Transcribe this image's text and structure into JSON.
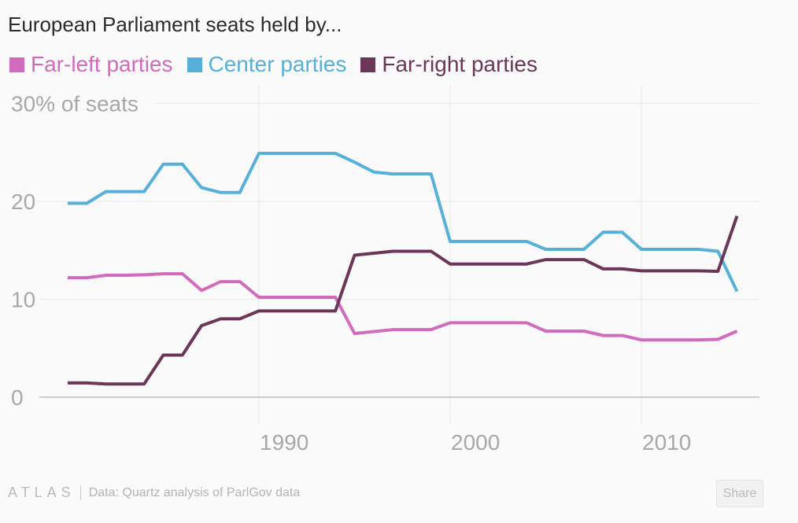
{
  "title": "European Parliament seats held by...",
  "footer": {
    "logo": "ATLAS",
    "source": "Data: Quartz analysis of ParlGov data",
    "share_label": "Share"
  },
  "chart_data": {
    "type": "line",
    "title": "European Parliament seats held by...",
    "ylabel": "",
    "xlabel": "",
    "ylim": [
      0,
      30
    ],
    "xlim": [
      1980,
      2015
    ],
    "y_ticks": [
      {
        "value": 0,
        "label": "0"
      },
      {
        "value": 10,
        "label": "10"
      },
      {
        "value": 20,
        "label": "20"
      },
      {
        "value": 30,
        "label": "30% of seats"
      }
    ],
    "x_ticks": [
      {
        "value": 1990,
        "label": "1990"
      },
      {
        "value": 2000,
        "label": "2000"
      },
      {
        "value": 2010,
        "label": "2010"
      }
    ],
    "grid": true,
    "legend": "top-left",
    "x": [
      1980,
      1981,
      1982,
      1983,
      1984,
      1985,
      1986,
      1987,
      1988,
      1989,
      1990,
      1991,
      1992,
      1993,
      1994,
      1995,
      1996,
      1997,
      1998,
      1999,
      2000,
      2001,
      2002,
      2003,
      2004,
      2005,
      2006,
      2007,
      2008,
      2009,
      2010,
      2011,
      2012,
      2013,
      2014,
      2015
    ],
    "series": [
      {
        "name": "Far-left parties",
        "color": "#d16bbe",
        "values": [
          12.2,
          12.2,
          12.45,
          12.45,
          12.5,
          12.6,
          12.6,
          10.9,
          11.8,
          11.8,
          10.2,
          10.2,
          10.2,
          10.2,
          10.2,
          6.5,
          6.7,
          6.9,
          6.9,
          6.9,
          7.6,
          7.6,
          7.6,
          7.6,
          7.6,
          6.75,
          6.75,
          6.75,
          6.3,
          6.3,
          5.85,
          5.85,
          5.85,
          5.85,
          5.9,
          6.75
        ]
      },
      {
        "name": "Center parties",
        "color": "#57b0d9",
        "values": [
          19.8,
          19.8,
          21.0,
          21.0,
          21.0,
          23.8,
          23.8,
          21.4,
          20.9,
          20.9,
          24.9,
          24.9,
          24.9,
          24.9,
          24.9,
          24.0,
          23.0,
          22.8,
          22.8,
          22.8,
          15.9,
          15.9,
          15.9,
          15.9,
          15.9,
          15.1,
          15.1,
          15.1,
          16.85,
          16.85,
          15.1,
          15.1,
          15.1,
          15.1,
          14.9,
          10.8
        ]
      },
      {
        "name": "Far-right parties",
        "color": "#6b3658",
        "values": [
          1.45,
          1.45,
          1.35,
          1.35,
          1.35,
          4.3,
          4.3,
          7.3,
          8.0,
          8.0,
          8.8,
          8.8,
          8.8,
          8.8,
          8.8,
          14.5,
          14.7,
          14.9,
          14.9,
          14.9,
          13.6,
          13.6,
          13.6,
          13.6,
          13.6,
          14.05,
          14.05,
          14.05,
          13.1,
          13.1,
          12.9,
          12.9,
          12.9,
          12.9,
          12.85,
          18.5
        ]
      }
    ]
  }
}
